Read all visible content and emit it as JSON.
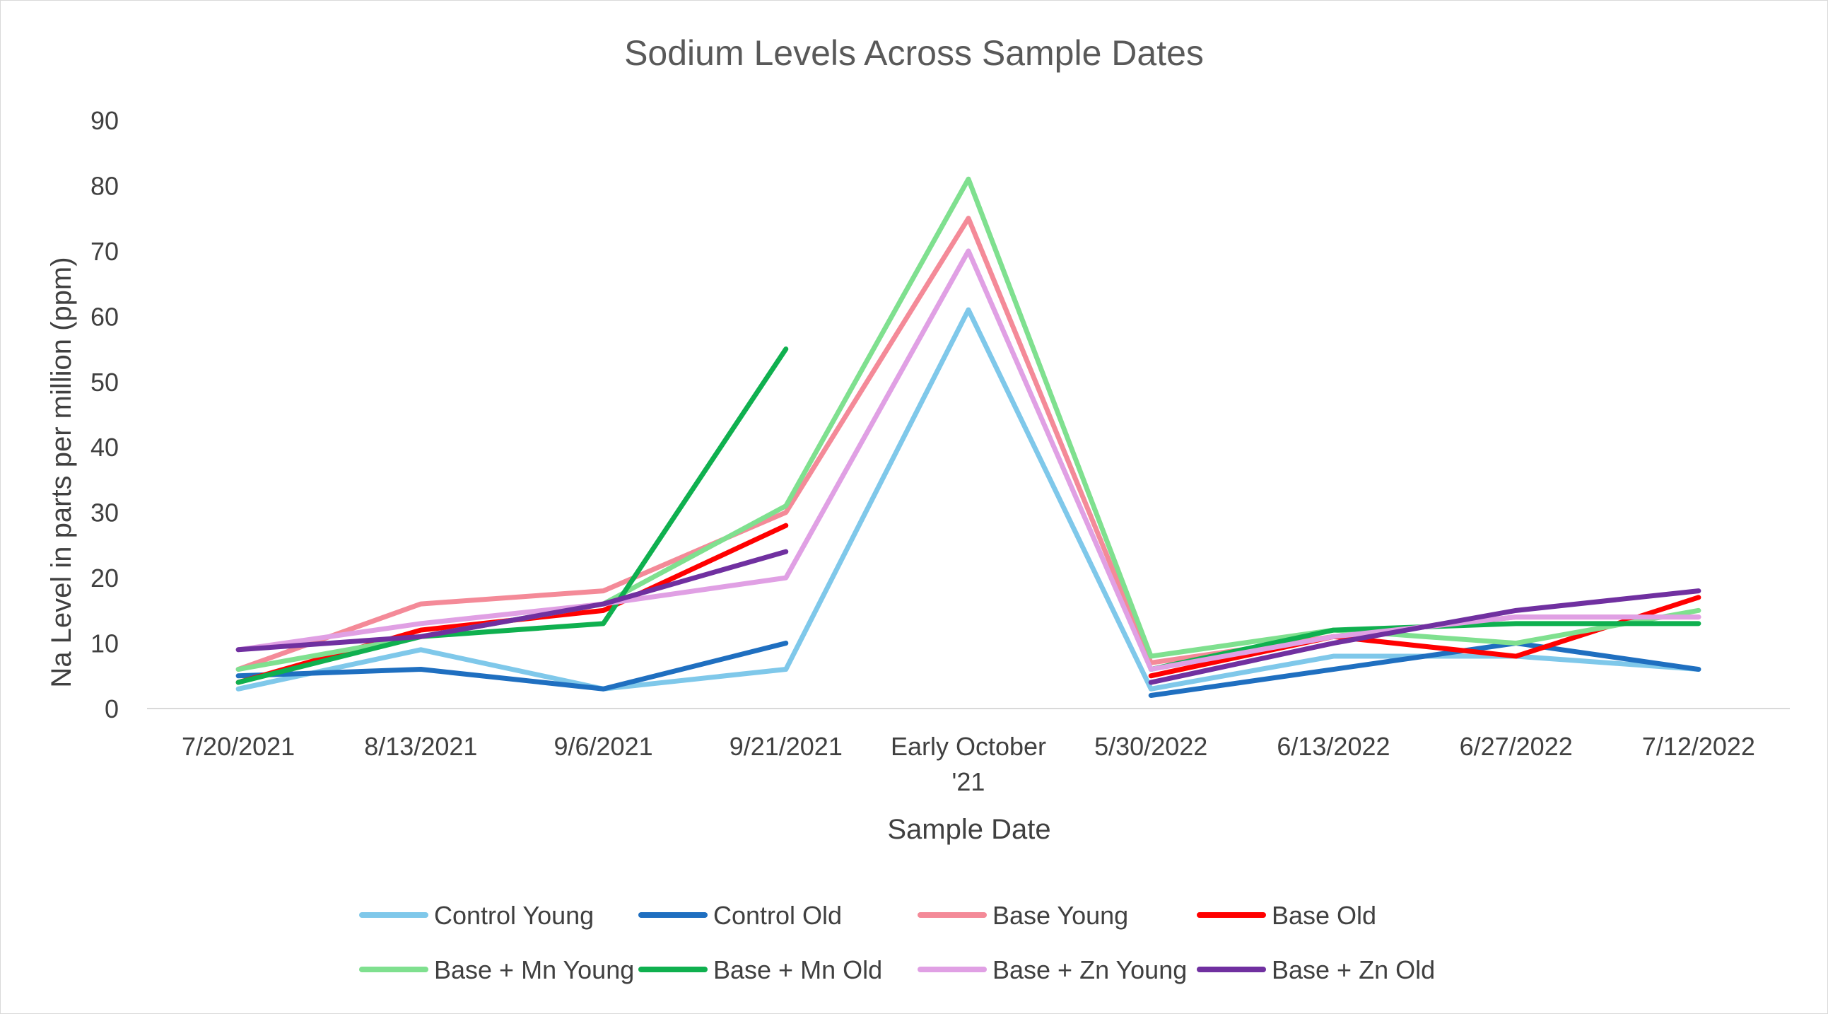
{
  "chart_data": {
    "type": "line",
    "title": "Sodium Levels Across Sample Dates",
    "xlabel": "Sample Date",
    "ylabel": "Na Level in parts per million (ppm)",
    "ylim": [
      0,
      90
    ],
    "yticks": [
      0,
      10,
      20,
      30,
      40,
      50,
      60,
      70,
      80,
      90
    ],
    "grid": false,
    "legend_position": "bottom",
    "categories": [
      "7/20/2021",
      "8/13/2021",
      "9/6/2021",
      "9/21/2021",
      "Early October '21",
      "5/30/2022",
      "6/13/2022",
      "6/27/2022",
      "7/12/2022"
    ],
    "category_display": [
      [
        "7/20/2021"
      ],
      [
        "8/13/2021"
      ],
      [
        "9/6/2021"
      ],
      [
        "9/21/2021"
      ],
      [
        "Early October",
        "'21"
      ],
      [
        "5/30/2022"
      ],
      [
        "6/13/2022"
      ],
      [
        "6/27/2022"
      ],
      [
        "7/12/2022"
      ]
    ],
    "series": [
      {
        "name": "Control Young",
        "color": "#7fc8ea",
        "values": [
          3,
          9,
          3,
          6,
          61,
          3,
          8,
          8,
          6
        ]
      },
      {
        "name": "Control Old",
        "color": "#1f6fc0",
        "values": [
          5,
          6,
          3,
          10,
          null,
          2,
          6,
          10,
          6
        ]
      },
      {
        "name": "Base Young",
        "color": "#f48a98",
        "values": [
          6,
          16,
          18,
          30,
          75,
          7,
          11,
          14,
          14
        ]
      },
      {
        "name": "Base Old",
        "color": "#ff0000",
        "values": [
          4,
          12,
          15,
          28,
          null,
          5,
          11,
          8,
          17
        ]
      },
      {
        "name": "Base + Mn Young",
        "color": "#7fe08f",
        "values": [
          6,
          11,
          16,
          31,
          81,
          8,
          12,
          10,
          15
        ]
      },
      {
        "name": "Base + Mn Old",
        "color": "#0fb04f",
        "values": [
          4,
          11,
          13,
          55,
          null,
          6,
          12,
          13,
          13
        ]
      },
      {
        "name": "Base + Zn Young",
        "color": "#e0a0e4",
        "values": [
          9,
          13,
          16,
          20,
          70,
          6,
          11,
          14,
          14
        ]
      },
      {
        "name": "Base + Zn Old",
        "color": "#7030a0",
        "values": [
          9,
          11,
          16,
          24,
          null,
          4,
          10,
          15,
          18
        ]
      }
    ]
  }
}
